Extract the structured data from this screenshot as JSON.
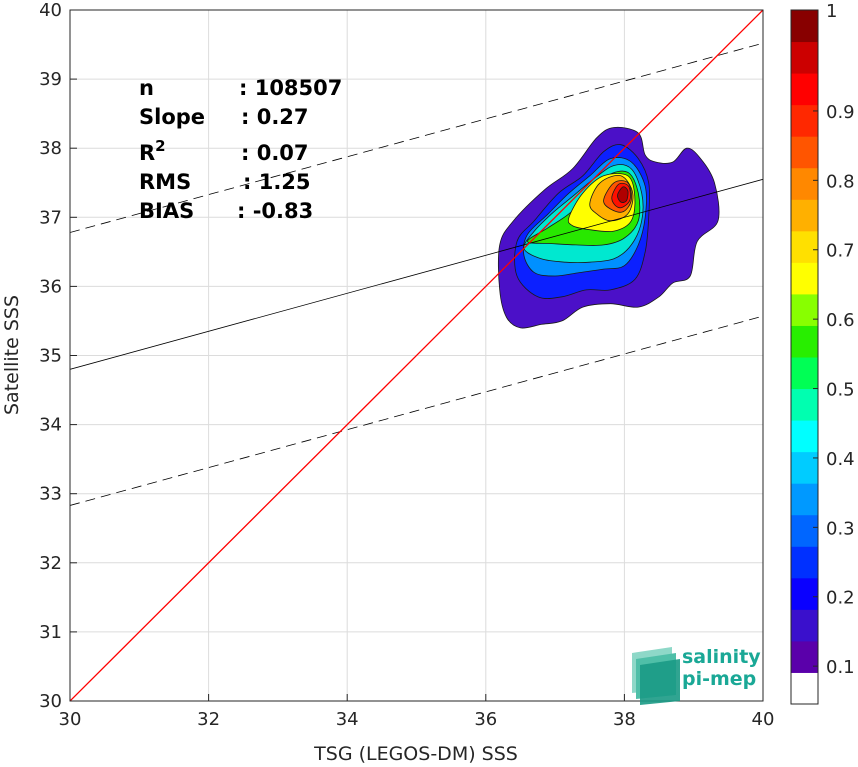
{
  "chart_data": {
    "type": "contour_density_scatter",
    "xlabel": "TSG (LEGOS-DM) SSS",
    "ylabel": "Satellite SSS",
    "xlim": [
      30,
      40
    ],
    "ylim": [
      30,
      40
    ],
    "x_ticks": [
      "30",
      "32",
      "34",
      "36",
      "38",
      "40"
    ],
    "y_ticks": [
      "30",
      "31",
      "32",
      "33",
      "34",
      "35",
      "36",
      "37",
      "38",
      "39",
      "40"
    ],
    "grid": true,
    "stats": [
      {
        "label": "n",
        "value": ": 108507"
      },
      {
        "label": "Slope",
        "value": ": 0.27"
      },
      {
        "label": "R",
        "sup": "2",
        "value": ": 0.07"
      },
      {
        "label": "RMS",
        "value": ": 1.25"
      },
      {
        "label": "BIAS",
        "value": ": -0.83"
      }
    ],
    "lines": {
      "identity": {
        "color": "#ff0000",
        "x": [
          30,
          40
        ],
        "y": [
          30,
          40
        ]
      },
      "fit": {
        "color": "#000000",
        "style": "solid",
        "x": [
          30,
          40
        ],
        "y": [
          34.8,
          37.55
        ]
      },
      "upper_band": {
        "color": "#000000",
        "style": "dashed",
        "x": [
          30,
          40
        ],
        "y": [
          36.78,
          39.52
        ]
      },
      "lower_band": {
        "color": "#000000",
        "style": "dashed",
        "x": [
          30,
          40
        ],
        "y": [
          32.83,
          35.57
        ]
      }
    },
    "density_peak": {
      "x": 38.0,
      "y": 37.35
    },
    "colorbar": {
      "ticks": [
        "0.1",
        "0.2",
        "0.3",
        "0.4",
        "0.5",
        "0.6",
        "0.7",
        "0.8",
        "0.9",
        "1"
      ],
      "colors": [
        "#ffffff",
        "#5a00aa",
        "#3a10cc",
        "#0a00ff",
        "#0030ff",
        "#0066ff",
        "#0099ff",
        "#00ccff",
        "#00ffff",
        "#00ffb0",
        "#00ff55",
        "#28ee00",
        "#88ff00",
        "#ffff00",
        "#ffe000",
        "#ffb000",
        "#ff8800",
        "#ff5500",
        "#ff2800",
        "#ff0000",
        "#cc0000",
        "#880000"
      ],
      "range": [
        0,
        1
      ]
    },
    "contours": [
      {
        "color": "#4b10c8",
        "pts": [
          [
            36.2,
            35.95
          ],
          [
            36.2,
            36.6
          ],
          [
            36.4,
            36.95
          ],
          [
            36.85,
            37.4
          ],
          [
            37.25,
            37.7
          ],
          [
            37.6,
            38.15
          ],
          [
            37.85,
            38.3
          ],
          [
            38.2,
            38.22
          ],
          [
            38.3,
            37.9
          ],
          [
            38.45,
            37.8
          ],
          [
            38.7,
            37.8
          ],
          [
            38.9,
            38.0
          ],
          [
            39.1,
            37.85
          ],
          [
            39.3,
            37.5
          ],
          [
            39.35,
            36.95
          ],
          [
            39.05,
            36.65
          ],
          [
            38.95,
            36.15
          ],
          [
            38.7,
            36.05
          ],
          [
            38.5,
            35.85
          ],
          [
            38.2,
            35.7
          ],
          [
            37.8,
            35.75
          ],
          [
            37.4,
            35.7
          ],
          [
            37.1,
            35.5
          ],
          [
            36.8,
            35.45
          ],
          [
            36.5,
            35.4
          ],
          [
            36.3,
            35.55
          ]
        ]
      },
      {
        "color": "#0c20ff",
        "pts": [
          [
            36.45,
            36.15
          ],
          [
            36.45,
            36.65
          ],
          [
            36.7,
            36.95
          ],
          [
            37.05,
            37.35
          ],
          [
            37.4,
            37.6
          ],
          [
            37.7,
            37.95
          ],
          [
            37.95,
            38.05
          ],
          [
            38.2,
            37.85
          ],
          [
            38.35,
            37.5
          ],
          [
            38.35,
            37.0
          ],
          [
            38.3,
            36.5
          ],
          [
            38.15,
            36.1
          ],
          [
            37.8,
            35.95
          ],
          [
            37.45,
            35.95
          ],
          [
            37.1,
            35.85
          ],
          [
            36.75,
            35.85
          ]
        ]
      },
      {
        "color": "#0090ff",
        "pts": [
          [
            36.55,
            36.45
          ],
          [
            36.6,
            36.75
          ],
          [
            36.9,
            37.05
          ],
          [
            37.2,
            37.35
          ],
          [
            37.5,
            37.6
          ],
          [
            37.8,
            37.85
          ],
          [
            38.1,
            37.8
          ],
          [
            38.3,
            37.45
          ],
          [
            38.3,
            37.0
          ],
          [
            38.2,
            36.6
          ],
          [
            38.0,
            36.3
          ],
          [
            37.7,
            36.25
          ],
          [
            37.35,
            36.2
          ],
          [
            37.0,
            36.15
          ],
          [
            36.7,
            36.2
          ]
        ]
      },
      {
        "color": "#00e8d0",
        "pts": [
          [
            36.55,
            36.55
          ],
          [
            36.7,
            36.8
          ],
          [
            36.95,
            37.05
          ],
          [
            37.25,
            37.3
          ],
          [
            37.55,
            37.55
          ],
          [
            37.85,
            37.75
          ],
          [
            38.1,
            37.7
          ],
          [
            38.25,
            37.35
          ],
          [
            38.25,
            36.95
          ],
          [
            38.1,
            36.6
          ],
          [
            37.85,
            36.4
          ],
          [
            37.5,
            36.35
          ],
          [
            37.15,
            36.35
          ],
          [
            36.8,
            36.4
          ]
        ]
      },
      {
        "color": "#28e800",
        "pts": [
          [
            36.6,
            36.65
          ],
          [
            36.9,
            36.85
          ],
          [
            37.2,
            37.05
          ],
          [
            37.45,
            37.3
          ],
          [
            37.75,
            37.6
          ],
          [
            38.05,
            37.65
          ],
          [
            38.2,
            37.35
          ],
          [
            38.2,
            36.95
          ],
          [
            38.0,
            36.7
          ],
          [
            37.7,
            36.6
          ],
          [
            37.3,
            36.6
          ],
          [
            36.95,
            36.62
          ]
        ]
      },
      {
        "color": "#ffff00",
        "pts": [
          [
            37.2,
            37.0
          ],
          [
            37.4,
            37.35
          ],
          [
            37.7,
            37.6
          ],
          [
            38.05,
            37.6
          ],
          [
            38.15,
            37.3
          ],
          [
            38.1,
            36.95
          ],
          [
            37.85,
            36.8
          ],
          [
            37.5,
            36.82
          ],
          [
            37.25,
            36.88
          ]
        ]
      },
      {
        "color": "#ffb000",
        "pts": [
          [
            37.5,
            37.2
          ],
          [
            37.65,
            37.5
          ],
          [
            37.95,
            37.6
          ],
          [
            38.12,
            37.35
          ],
          [
            38.05,
            37.05
          ],
          [
            37.8,
            36.95
          ],
          [
            37.6,
            37.05
          ]
        ]
      },
      {
        "color": "#ff5500",
        "pts": [
          [
            37.7,
            37.25
          ],
          [
            37.85,
            37.5
          ],
          [
            38.05,
            37.5
          ],
          [
            38.1,
            37.25
          ],
          [
            37.98,
            37.08
          ],
          [
            37.8,
            37.12
          ]
        ]
      },
      {
        "color": "#ff1000",
        "pts": [
          [
            37.82,
            37.3
          ],
          [
            37.92,
            37.48
          ],
          [
            38.06,
            37.45
          ],
          [
            38.08,
            37.25
          ],
          [
            37.96,
            37.14
          ],
          [
            37.86,
            37.18
          ]
        ]
      },
      {
        "color": "#b00000",
        "pts": [
          [
            37.9,
            37.32
          ],
          [
            37.98,
            37.44
          ],
          [
            38.05,
            37.38
          ],
          [
            38.03,
            37.24
          ],
          [
            37.95,
            37.22
          ]
        ]
      }
    ]
  },
  "logo": {
    "line1": "salinity",
    "line2": "pi-mep",
    "color": "#1aa896"
  }
}
